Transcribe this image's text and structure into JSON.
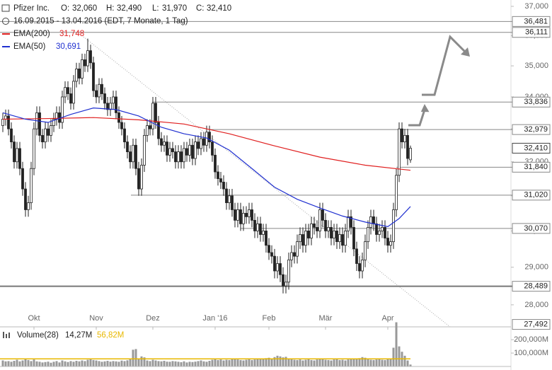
{
  "chart_data": {
    "type": "candlestick",
    "title": "Pfizer Inc.",
    "header": [
      {
        "key": "O:",
        "value": 32.06,
        "label": "32,060"
      },
      {
        "key": "H:",
        "value": 32.49,
        "label": "32,490"
      },
      {
        "key": "L:",
        "value": 31.97,
        "label": "31,970"
      },
      {
        "key": "C:",
        "value": 32.41,
        "label": "32,410"
      }
    ],
    "period": "16.09.2015 - 13.04.2016 (EDT, 7 Monate, 1 Tag)",
    "categories": [
      null,
      null,
      null,
      null,
      null,
      null,
      null,
      null,
      null,
      null,
      null,
      "Okt",
      null,
      null,
      null,
      null,
      null,
      null,
      null,
      null,
      null,
      null,
      null,
      null,
      null,
      null,
      null,
      null,
      null,
      null,
      null,
      null,
      null,
      "Nov",
      null,
      null,
      null,
      null,
      null,
      null,
      null,
      null,
      null,
      null,
      null,
      null,
      null,
      null,
      null,
      null,
      null,
      null,
      null,
      "Dez",
      null,
      null,
      null,
      null,
      null,
      null,
      null,
      null,
      null,
      null,
      null,
      null,
      null,
      null,
      null,
      null,
      null,
      null,
      null,
      null,
      null,
      "Jan '16",
      null,
      null,
      null,
      null,
      null,
      null,
      null,
      null,
      null,
      null,
      null,
      null,
      null,
      null,
      null,
      null,
      null,
      null,
      "Feb",
      null,
      null,
      null,
      null,
      null,
      null,
      null,
      null,
      null,
      null,
      null,
      null,
      null,
      null,
      null,
      null,
      null,
      null,
      null,
      "Mär",
      null,
      null,
      null,
      null,
      null,
      null,
      null,
      null,
      null,
      null,
      null,
      null,
      null,
      null,
      null,
      null,
      null,
      null,
      null,
      null,
      null,
      "Apr",
      null,
      null,
      null,
      null,
      null,
      null,
      null,
      null
    ],
    "open": [
      33.1,
      33.3,
      33.4,
      33.0,
      32.6,
      32.0,
      32.4,
      31.8,
      31.2,
      30.6,
      30.8,
      31.8,
      33.0,
      33.5,
      32.8,
      32.6,
      33.0,
      32.8,
      33.1,
      33.3,
      33.5,
      33.2,
      34.0,
      34.3,
      34.1,
      33.8,
      34.5,
      34.9,
      34.6,
      35.2,
      35.0,
      35.5,
      35.1,
      34.2,
      34.0,
      34.4,
      34.1,
      33.8,
      33.6,
      33.8,
      34.0,
      33.5,
      33.2,
      33.0,
      32.6,
      32.3,
      32.0,
      32.5,
      31.8,
      31.2,
      31.9,
      32.8,
      33.1,
      33.0,
      33.8,
      33.2,
      32.7,
      32.5,
      32.6,
      32.2,
      32.4,
      32.3,
      32.0,
      32.3,
      32.0,
      32.4,
      32.2,
      32.5,
      32.1,
      32.6,
      32.4,
      32.7,
      32.5,
      32.9,
      32.6,
      32.2,
      31.7,
      31.5,
      31.4,
      31.2,
      30.8,
      31.0,
      30.6,
      30.3,
      30.6,
      30.2,
      30.5,
      30.4,
      30.6,
      30.3,
      30.0,
      30.2,
      29.9,
      30.0,
      29.6,
      29.4,
      29.3,
      28.9,
      29.1,
      28.8,
      28.5,
      28.6,
      29.2,
      29.4,
      29.3,
      29.7,
      29.9,
      29.6,
      30.0,
      29.8,
      30.2,
      30.1,
      30.0,
      30.6,
      30.3,
      30.0,
      30.1,
      29.8,
      30.0,
      29.7,
      29.9,
      29.6,
      30.0,
      30.4,
      30.1,
      29.5,
      29.1,
      28.9,
      29.2,
      29.7,
      30.1,
      30.4,
      30.2,
      29.9,
      30.0,
      30.1,
      29.8,
      29.6,
      29.7,
      30.6,
      31.6,
      33.0,
      32.6,
      32.8,
      32.06
    ],
    "high": [
      33.5,
      33.6,
      33.6,
      33.2,
      32.8,
      32.6,
      32.6,
      32.0,
      31.4,
      31.0,
      32.0,
      33.2,
      33.7,
      33.7,
      33.0,
      33.2,
      33.2,
      33.3,
      33.5,
      33.7,
      33.7,
      34.2,
      34.5,
      34.5,
      34.3,
      34.7,
      35.1,
      35.1,
      35.4,
      35.4,
      35.9,
      35.7,
      35.3,
      34.4,
      34.6,
      34.6,
      34.3,
      34.0,
      34.0,
      34.2,
      34.2,
      33.7,
      33.4,
      33.2,
      32.8,
      32.5,
      32.7,
      32.7,
      32.0,
      32.1,
      33.0,
      33.3,
      33.3,
      34.0,
      34.0,
      33.4,
      32.9,
      32.8,
      32.8,
      32.6,
      32.6,
      32.5,
      32.5,
      32.5,
      32.6,
      32.6,
      32.7,
      32.7,
      32.8,
      32.8,
      32.9,
      32.9,
      33.1,
      33.1,
      32.8,
      32.4,
      31.9,
      31.7,
      31.6,
      31.4,
      31.2,
      31.2,
      30.8,
      30.8,
      30.8,
      30.7,
      30.7,
      30.8,
      30.8,
      30.5,
      30.4,
      30.4,
      30.2,
      30.2,
      29.8,
      29.6,
      29.5,
      29.3,
      29.3,
      29.0,
      28.8,
      29.4,
      29.6,
      29.6,
      29.9,
      30.1,
      30.1,
      30.2,
      30.2,
      30.4,
      30.4,
      30.3,
      30.8,
      30.8,
      30.5,
      30.3,
      30.3,
      30.2,
      30.2,
      30.1,
      30.1,
      30.2,
      30.6,
      30.6,
      30.3,
      29.7,
      29.3,
      29.4,
      29.9,
      30.3,
      30.6,
      30.6,
      30.4,
      30.2,
      30.3,
      30.3,
      30.0,
      29.9,
      30.8,
      31.8,
      33.2,
      33.2,
      33.0,
      33.0,
      32.49
    ],
    "low": [
      32.9,
      33.1,
      32.8,
      32.4,
      31.8,
      31.8,
      31.6,
      31.0,
      30.4,
      30.4,
      30.6,
      31.6,
      32.8,
      32.6,
      32.4,
      32.4,
      32.6,
      32.6,
      32.9,
      33.1,
      33.0,
      33.0,
      33.8,
      33.9,
      33.6,
      33.6,
      34.3,
      34.4,
      34.4,
      34.8,
      34.8,
      34.9,
      34.0,
      33.8,
      33.8,
      33.9,
      33.6,
      33.4,
      33.4,
      33.6,
      33.3,
      33.0,
      32.8,
      32.4,
      32.1,
      31.8,
      31.8,
      31.6,
      31.0,
      31.0,
      31.7,
      32.6,
      32.8,
      32.8,
      33.0,
      32.5,
      32.3,
      32.3,
      32.0,
      32.0,
      32.1,
      31.8,
      31.8,
      31.8,
      31.8,
      32.0,
      32.0,
      31.9,
      31.9,
      32.2,
      32.2,
      32.3,
      32.3,
      32.4,
      32.0,
      31.5,
      31.3,
      31.2,
      31.0,
      30.6,
      30.6,
      30.4,
      30.1,
      30.1,
      30.0,
      30.0,
      30.2,
      30.2,
      30.1,
      29.8,
      29.8,
      29.7,
      29.7,
      29.4,
      29.2,
      29.1,
      28.7,
      28.7,
      28.6,
      28.3,
      28.3,
      28.4,
      29.0,
      29.1,
      29.1,
      29.5,
      29.4,
      29.4,
      29.6,
      29.6,
      29.9,
      29.8,
      29.8,
      30.1,
      29.8,
      29.8,
      29.6,
      29.6,
      29.5,
      29.5,
      29.4,
      29.4,
      29.8,
      29.9,
      29.3,
      28.9,
      28.7,
      28.7,
      29.0,
      29.5,
      29.9,
      30.0,
      29.7,
      29.7,
      29.8,
      29.6,
      29.4,
      29.4,
      29.5,
      30.4,
      31.4,
      32.4,
      32.4,
      31.9,
      31.97
    ],
    "close": [
      33.3,
      33.4,
      33.0,
      32.6,
      32.0,
      32.4,
      31.8,
      31.2,
      30.6,
      30.8,
      31.8,
      33.0,
      33.5,
      32.8,
      32.6,
      33.0,
      32.8,
      33.1,
      33.3,
      33.5,
      33.2,
      34.0,
      34.3,
      34.1,
      33.8,
      34.5,
      34.9,
      34.6,
      35.2,
      35.0,
      35.5,
      35.1,
      34.2,
      34.0,
      34.4,
      34.1,
      33.8,
      33.6,
      33.8,
      34.0,
      33.5,
      33.2,
      33.0,
      32.6,
      32.3,
      32.0,
      32.5,
      31.8,
      31.2,
      31.9,
      32.8,
      33.1,
      33.0,
      33.8,
      33.2,
      32.7,
      32.5,
      32.6,
      32.2,
      32.4,
      32.3,
      32.0,
      32.3,
      32.0,
      32.4,
      32.2,
      32.5,
      32.1,
      32.6,
      32.4,
      32.7,
      32.5,
      32.9,
      32.6,
      32.2,
      31.7,
      31.5,
      31.4,
      31.2,
      30.8,
      31.0,
      30.6,
      30.3,
      30.6,
      30.2,
      30.5,
      30.4,
      30.6,
      30.3,
      30.0,
      30.2,
      29.9,
      30.0,
      29.6,
      29.4,
      29.3,
      28.9,
      29.1,
      28.8,
      28.5,
      28.6,
      29.2,
      29.4,
      29.3,
      29.7,
      29.9,
      29.6,
      30.0,
      29.8,
      30.2,
      30.1,
      30.0,
      30.6,
      30.3,
      30.0,
      30.1,
      29.8,
      30.0,
      29.7,
      29.9,
      29.6,
      30.0,
      30.4,
      30.1,
      29.5,
      29.1,
      28.9,
      29.2,
      29.7,
      30.1,
      30.4,
      30.2,
      29.9,
      30.0,
      30.1,
      29.8,
      29.6,
      29.7,
      30.6,
      31.6,
      33.0,
      32.6,
      32.8,
      32.1,
      32.41
    ],
    "ylim": [
      27.43,
      37.22
    ],
    "log_scale": true,
    "yticks": [
      {
        "value": 28,
        "label": "28,000"
      },
      {
        "value": 29,
        "label": "29,000"
      },
      {
        "value": 30,
        "label": "30,000"
      },
      {
        "value": 31,
        "label": "31,000"
      },
      {
        "value": 32,
        "label": "32,000"
      },
      {
        "value": 33,
        "label": "33,000"
      },
      {
        "value": 34,
        "label": "34,000"
      },
      {
        "value": 35,
        "label": "35,000"
      },
      {
        "value": 36,
        "label": "36,000"
      },
      {
        "value": 37,
        "label": "37,000"
      }
    ],
    "levels": [
      {
        "value": 36.481,
        "label": "36,481"
      },
      {
        "value": 36.111,
        "label": "36,111"
      },
      {
        "value": 33.836,
        "label": "33,836"
      },
      {
        "value": 32.979,
        "label": "32,979"
      },
      {
        "value": 31.84,
        "label": "31,840"
      },
      {
        "value": 31.02,
        "label": "31,020"
      },
      {
        "value": 30.07,
        "label": "30,070"
      },
      {
        "value": 28.489,
        "label": "28,489"
      },
      {
        "value": 27.492,
        "label": "27,492"
      }
    ],
    "indicators": [
      {
        "name": "EMA(200)",
        "color": "#e02020",
        "last_value": 31.748,
        "last_label": "31,748",
        "x": [
          0,
          16,
          32,
          48,
          64,
          80,
          96,
          112,
          128,
          144
        ],
        "values": [
          33.3,
          33.32,
          33.35,
          33.28,
          33.15,
          32.85,
          32.48,
          32.14,
          31.9,
          31.748
        ]
      },
      {
        "name": "EMA(50)",
        "color": "#2030d0",
        "last_value": 30.691,
        "last_label": "30,691",
        "x": [
          0,
          8,
          16,
          24,
          32,
          40,
          48,
          56,
          64,
          72,
          80,
          88,
          96,
          104,
          112,
          120,
          128,
          136,
          140,
          144
        ],
        "values": [
          33.5,
          33.3,
          33.2,
          33.45,
          33.65,
          33.6,
          33.4,
          33.05,
          32.85,
          32.72,
          32.35,
          31.8,
          31.25,
          30.9,
          30.65,
          30.42,
          30.25,
          30.12,
          30.35,
          30.691
        ]
      }
    ],
    "volume": {
      "name": "Volume(28)",
      "color": "#999999",
      "last_value": 14.27,
      "last_label": "14,27M",
      "average": 56.82,
      "average_label": "56,82M",
      "average_color": "#e8b800",
      "ylim": [
        0,
        280
      ],
      "yticks": [
        {
          "value": 100,
          "label": "100,000M"
        },
        {
          "value": 200,
          "label": "200,000M"
        }
      ],
      "values": [
        45,
        38,
        40,
        35,
        42,
        50,
        38,
        45,
        55,
        48,
        40,
        52,
        38,
        35,
        30,
        33,
        36,
        28,
        35,
        40,
        30,
        45,
        38,
        33,
        40,
        35,
        42,
        38,
        45,
        40,
        50,
        55,
        48,
        45,
        40,
        35,
        38,
        42,
        36,
        40,
        38,
        35,
        44,
        40,
        46,
        55,
        125,
        130,
        60,
        75,
        68,
        45,
        40,
        50,
        45,
        40,
        38,
        42,
        36,
        35,
        40,
        38,
        35,
        32,
        38,
        30,
        35,
        33,
        36,
        40,
        45,
        38,
        35,
        42,
        50,
        55,
        48,
        52,
        45,
        50,
        48,
        55,
        60,
        52,
        48,
        45,
        50,
        55,
        48,
        52,
        58,
        60,
        55,
        62,
        65,
        60,
        70,
        80,
        75,
        68,
        72,
        60,
        55,
        50,
        48,
        52,
        45,
        50,
        55,
        48,
        45,
        52,
        60,
        55,
        50,
        48,
        45,
        52,
        55,
        48,
        50,
        45,
        52,
        58,
        60,
        55,
        62,
        70,
        65,
        58,
        50,
        48,
        52,
        55,
        50,
        48,
        55,
        60,
        140,
        330,
        150,
        110,
        80,
        45,
        14.27
      ]
    }
  }
}
